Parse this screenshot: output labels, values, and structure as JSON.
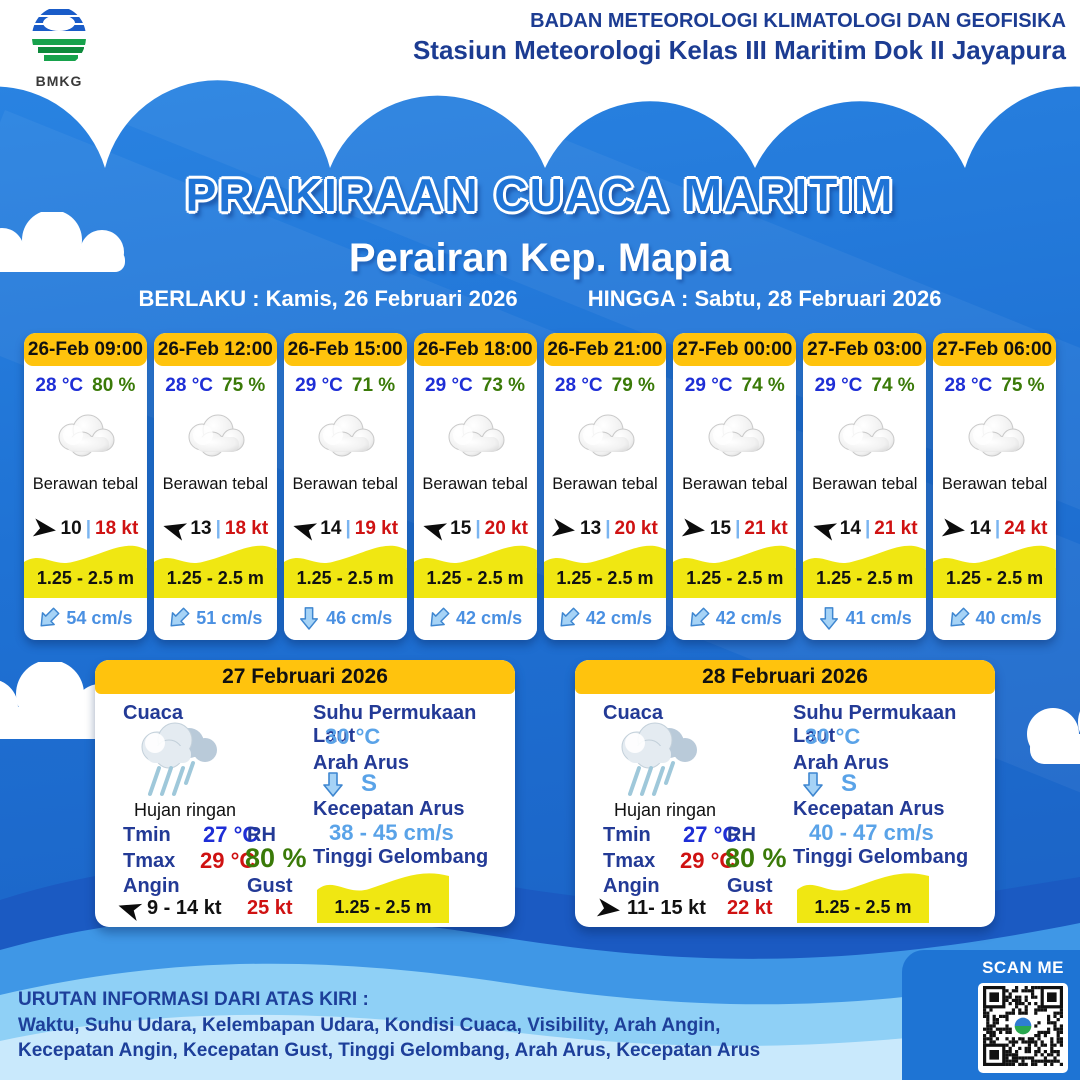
{
  "header": {
    "agency_line1": "BADAN METEOROLOGI KLIMATOLOGI DAN GEOFISIKA",
    "agency_line2": "Stasiun Meteorologi Kelas III Maritim Dok II Jayapura",
    "logo_label": "BMKG"
  },
  "title": "PRAKIRAAN CUACA MARITIM",
  "subtitle": "Perairan Kep. Mapia",
  "validity": {
    "berlaku": "BERLAKU : Kamis, 26 Februari 2026",
    "hingga": "HINGGA :  Sabtu, 28 Februari 2026"
  },
  "hourly": [
    {
      "time": "26-Feb 09:00",
      "temp": "28 °C",
      "rh": "80 %",
      "weather": "Berawan tebal",
      "wind_min": "10",
      "wind_sep": "|",
      "wind_max": "18 kt",
      "wind_dir_deg": 8,
      "wave": "1.25 - 2.5 m",
      "current": "54 cm/s",
      "current_dir_deg": 45
    },
    {
      "time": "26-Feb 12:00",
      "temp": "28 °C",
      "rh": "75 %",
      "weather": "Berawan tebal",
      "wind_min": "13",
      "wind_sep": "|",
      "wind_max": "18 kt",
      "wind_dir_deg": 196,
      "wave": "1.25 - 2.5 m",
      "current": "51 cm/s",
      "current_dir_deg": 45
    },
    {
      "time": "26-Feb 15:00",
      "temp": "29 °C",
      "rh": "71 %",
      "weather": "Berawan tebal",
      "wind_min": "14",
      "wind_sep": "|",
      "wind_max": "19 kt",
      "wind_dir_deg": 196,
      "wave": "1.25 - 2.5 m",
      "current": "46 cm/s",
      "current_dir_deg": 0
    },
    {
      "time": "26-Feb 18:00",
      "temp": "29 °C",
      "rh": "73 %",
      "weather": "Berawan tebal",
      "wind_min": "15",
      "wind_sep": "|",
      "wind_max": "20 kt",
      "wind_dir_deg": 196,
      "wave": "1.25 - 2.5 m",
      "current": "42 cm/s",
      "current_dir_deg": 45
    },
    {
      "time": "26-Feb 21:00",
      "temp": "28 °C",
      "rh": "79 %",
      "weather": "Berawan tebal",
      "wind_min": "13",
      "wind_sep": "|",
      "wind_max": "20 kt",
      "wind_dir_deg": 8,
      "wave": "1.25 - 2.5 m",
      "current": "42 cm/s",
      "current_dir_deg": 45
    },
    {
      "time": "27-Feb 00:00",
      "temp": "29 °C",
      "rh": "74 %",
      "weather": "Berawan tebal",
      "wind_min": "15",
      "wind_sep": "|",
      "wind_max": "21 kt",
      "wind_dir_deg": 8,
      "wave": "1.25 - 2.5 m",
      "current": "42 cm/s",
      "current_dir_deg": 45
    },
    {
      "time": "27-Feb 03:00",
      "temp": "29 °C",
      "rh": "74 %",
      "weather": "Berawan tebal",
      "wind_min": "14",
      "wind_sep": "|",
      "wind_max": "21 kt",
      "wind_dir_deg": 196,
      "wave": "1.25 - 2.5 m",
      "current": "41 cm/s",
      "current_dir_deg": 0
    },
    {
      "time": "27-Feb 06:00",
      "temp": "28 °C",
      "rh": "75 %",
      "weather": "Berawan tebal",
      "wind_min": "14",
      "wind_sep": "|",
      "wind_max": "24 kt",
      "wind_dir_deg": 8,
      "wave": "1.25 - 2.5 m",
      "current": "40 cm/s",
      "current_dir_deg": 45
    }
  ],
  "daily_labels": {
    "cuaca": "Cuaca",
    "tmin": "Tmin",
    "tmax": "Tmax",
    "angin": "Angin",
    "rh": "RH",
    "gust": "Gust",
    "sst": "Suhu Permukaan Laut",
    "arah_arus": "Arah Arus",
    "kecepatan_arus": "Kecepatan Arus",
    "gelombang": "Tinggi Gelombang"
  },
  "daily": [
    {
      "date": "27 Februari 2026",
      "weather": "Hujan ringan",
      "tmin": "27 °C",
      "tmax": "29 °C",
      "wind": "9 - 14 kt",
      "wind_dir_deg": 198,
      "rh": "80 %",
      "gust": "25 kt",
      "sst": "30 °C",
      "arah_arus": "S",
      "arah_arus_deg": 0,
      "kec_arus": "38  - 45 cm/s",
      "gelombang": "1.25 - 2.5 m"
    },
    {
      "date": "28 Februari 2026",
      "weather": "Hujan ringan",
      "tmin": "27 °C",
      "tmax": "29 °C",
      "wind": "11- 15 kt",
      "wind_dir_deg": 8,
      "rh": "80 %",
      "gust": "22 kt",
      "sst": "30 °C",
      "arah_arus": "S",
      "arah_arus_deg": 0,
      "kec_arus": "40  - 47 cm/s",
      "gelombang": "1.25 - 2.5 m"
    }
  ],
  "footer": {
    "info_title": "URUTAN INFORMASI DARI ATAS KIRI :",
    "info_line1": "Waktu, Suhu Udara, Kelembapan Udara, Kondisi Cuaca, Visibility, Arah Angin,",
    "info_line2": "Kecepatan Angin, Kecepatan Gust, Tinggi Gelombang, Arah Arus, Kecepatan Arus",
    "scan_me": "SCAN ME"
  },
  "icons": {
    "bmkg_logo": "bmkg-logo",
    "cloud": "overcast-cloud-icon",
    "rain_cloud": "light-rain-cloud-icon",
    "wind_arrow": "wind-direction-dart-icon",
    "current_arrow": "current-direction-arrow-icon",
    "qr": "qr-code"
  },
  "colors": {
    "background_blue": "#1f72d4",
    "header_yellow": "#ffc30d",
    "wave_yellow": "#f0e712",
    "temp_blue": "#1e2ed6",
    "rh_green": "#3a7a08",
    "alert_red": "#cf1212",
    "current_blue": "#4a90e2",
    "label_navy": "#233a96"
  }
}
